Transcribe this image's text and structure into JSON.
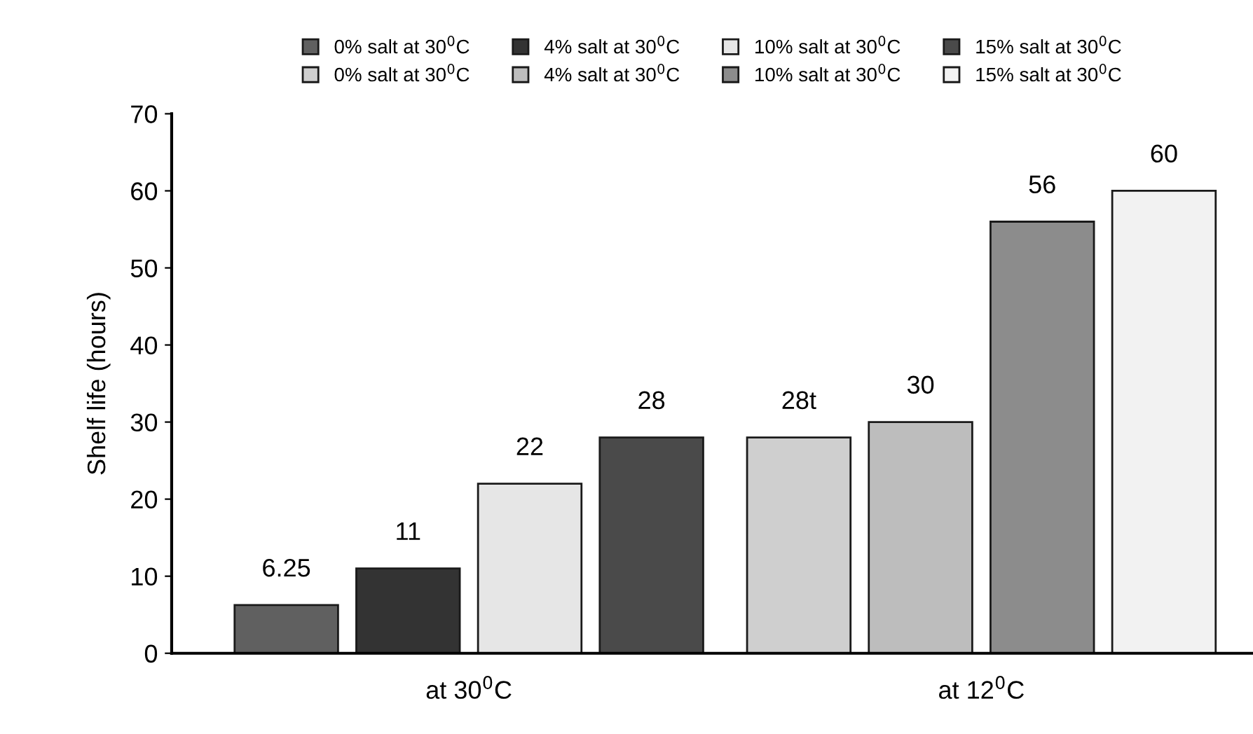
{
  "chart_data": {
    "type": "bar",
    "ylabel": "Shelf life (hours)",
    "categories": [
      "at 30$^{0}$C",
      "at 12$^{0}$C"
    ],
    "series": [
      {
        "name": "0% salt at 30$^{0}$C",
        "color": "#606060",
        "values": [
          6.25,
          null
        ],
        "value_labels": [
          "6.25",
          null
        ]
      },
      {
        "name": "4% salt at 30$^{0}$C",
        "color": "#333333",
        "values": [
          11,
          null
        ],
        "value_labels": [
          "11",
          null
        ]
      },
      {
        "name": "10% salt at 30$^{0}$C",
        "color": "#e6e6e6",
        "values": [
          22,
          null
        ],
        "value_labels": [
          "22",
          null
        ]
      },
      {
        "name": "15% salt at 30$^{0}$C",
        "color": "#4a4a4a",
        "values": [
          28,
          null
        ],
        "value_labels": [
          "28",
          null
        ]
      },
      {
        "name": "0% salt at 30$^{0}$C",
        "color": "#cfcfcf",
        "values": [
          null,
          28
        ],
        "value_labels": [
          null,
          "28t"
        ]
      },
      {
        "name": "4% salt at 30$^{0}$C",
        "color": "#bdbdbd",
        "values": [
          null,
          30
        ],
        "value_labels": [
          null,
          "30"
        ]
      },
      {
        "name": "10% salt at 30$^{0}$C",
        "color": "#8c8c8c",
        "values": [
          null,
          56
        ],
        "value_labels": [
          null,
          "56"
        ]
      },
      {
        "name": "15% salt at 30$^{0}$C",
        "color": "#f2f2f2",
        "values": [
          null,
          60
        ],
        "value_labels": [
          null,
          "60"
        ]
      }
    ],
    "ylim": [
      0,
      70
    ],
    "yticks": [
      0,
      10,
      20,
      30,
      40,
      50,
      60,
      70
    ],
    "grid": false,
    "legend": "top"
  }
}
